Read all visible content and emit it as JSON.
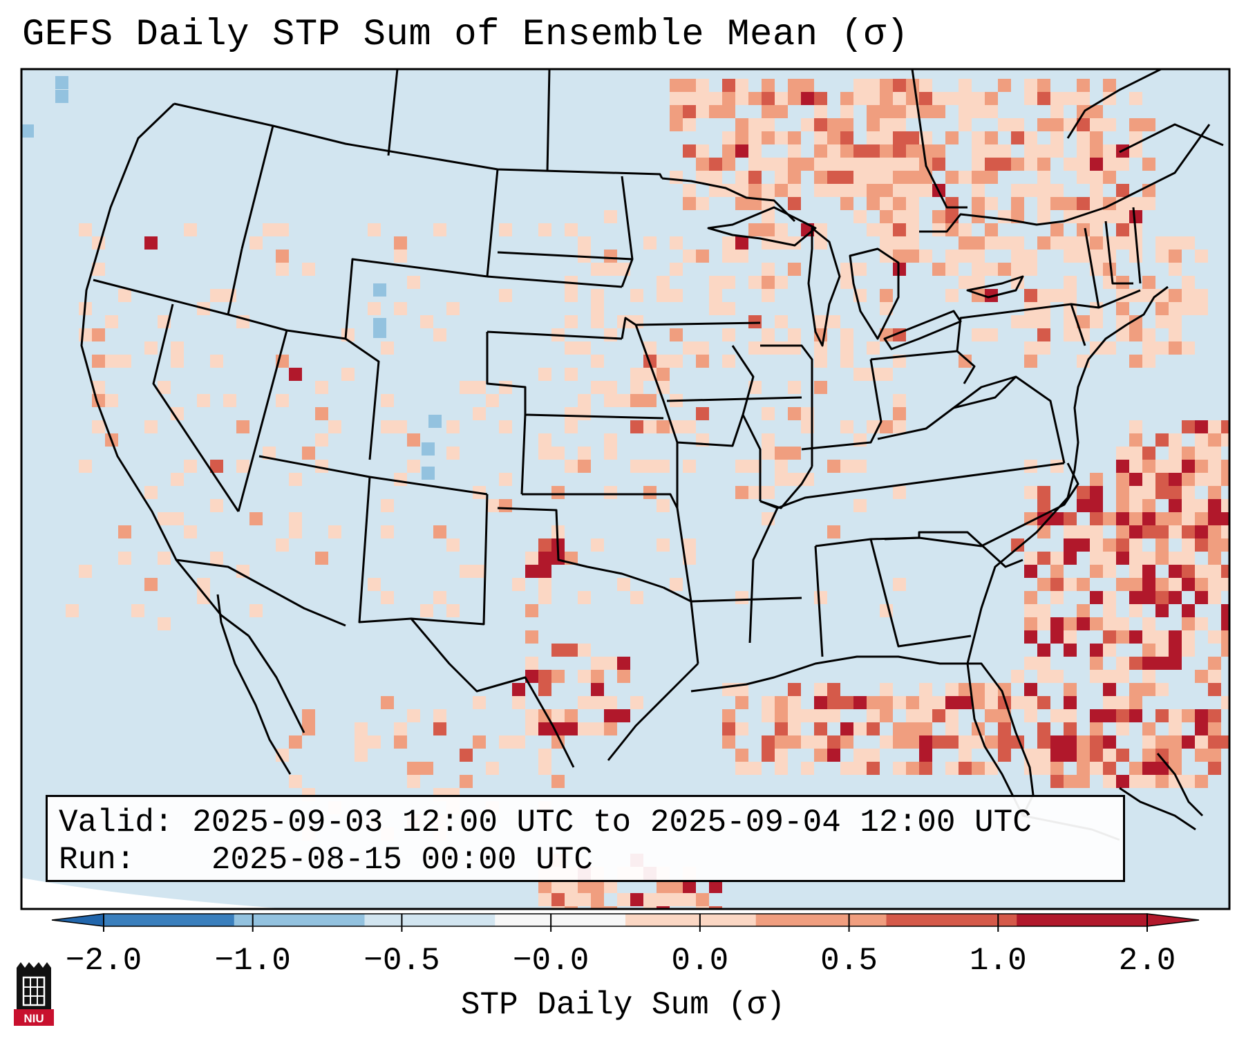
{
  "title": "GEFS Daily STP Sum of Ensemble Mean (σ)",
  "info": {
    "valid_label": "Valid:",
    "valid_text": "2025-09-03 12:00 UTC to 2025-09-04 12:00 UTC",
    "run_label": "Run:",
    "run_text": "2025-08-15 00:00 UTC"
  },
  "colorbar": {
    "label": "STP Daily Sum (σ)",
    "ticks": [
      "−2.0",
      "−1.0",
      "−0.5",
      "−0.0",
      "0.0",
      "0.5",
      "1.0",
      "2.0"
    ],
    "colors": [
      "#3a7fbd",
      "#93c2df",
      "#d2e5f0",
      "#f7f7f7",
      "#fbd7c4",
      "#f09e7f",
      "#d55a4a",
      "#b1182b"
    ],
    "under_color": "#2166ac",
    "over_color": "#b2182b"
  },
  "map": {
    "background_color": "#d2e5f0",
    "outside_color": "#ffffff",
    "borders": "US states, Canada, Mexico, coastlines"
  },
  "logo": {
    "text": "NIU",
    "color": "#c8102e"
  }
}
